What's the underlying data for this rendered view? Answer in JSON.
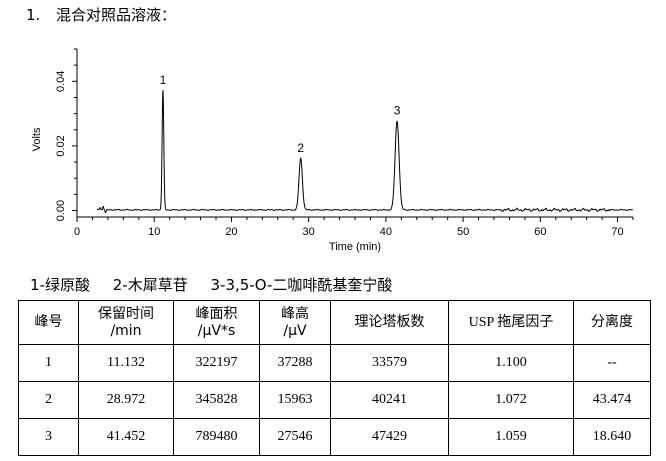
{
  "heading": {
    "number": "1.",
    "title": "混合对照品溶液："
  },
  "chart_data": {
    "type": "line",
    "xlabel": "Time (min)",
    "ylabel": "Volts",
    "xlim": [
      0,
      72
    ],
    "ylim": [
      -0.002,
      0.05
    ],
    "xticks": [
      0,
      10,
      20,
      30,
      40,
      50,
      60,
      70
    ],
    "yticks": [
      0.0,
      0.02,
      0.04
    ],
    "ytick_labels": [
      "0.00",
      "0.02",
      "0.04"
    ],
    "peaks": [
      {
        "label": "1",
        "time": 11.13,
        "height": 0.037
      },
      {
        "label": "2",
        "time": 28.97,
        "height": 0.016
      },
      {
        "label": "3",
        "time": 41.45,
        "height": 0.0275
      }
    ],
    "grid": false
  },
  "legend_text": [
    "1-绿原酸",
    "2-木犀草苷",
    "3-3,5-O-二咖啡酰基奎宁酸"
  ],
  "table": {
    "headers": [
      [
        "峰号"
      ],
      [
        "保留时间",
        "/min"
      ],
      [
        "峰面积",
        "/μV*s"
      ],
      [
        "峰高",
        "/μV"
      ],
      [
        "理论塔板数"
      ],
      [
        "USP 拖尾因子"
      ],
      [
        "分离度"
      ]
    ],
    "rows": [
      [
        "1",
        "11.132",
        "322197",
        "37288",
        "33579",
        "1.100",
        "--"
      ],
      [
        "2",
        "28.972",
        "345828",
        "15963",
        "40241",
        "1.072",
        "43.474"
      ],
      [
        "3",
        "41.452",
        "789480",
        "27546",
        "47429",
        "1.059",
        "18.640"
      ]
    ]
  }
}
